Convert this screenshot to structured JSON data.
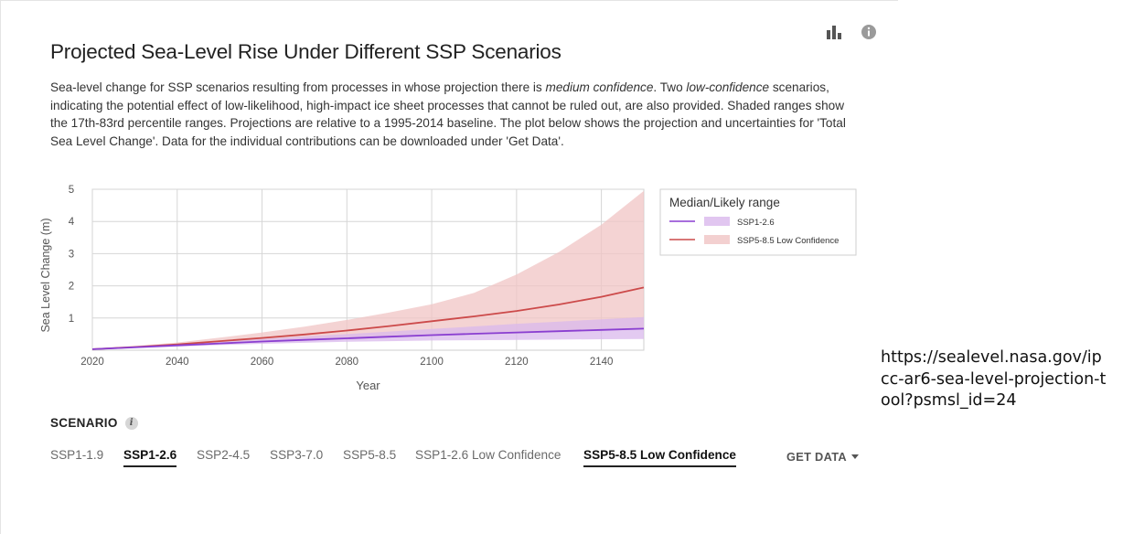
{
  "header": {
    "title": "Projected Sea-Level Rise Under Different SSP Scenarios",
    "description_html": "Sea-level change for SSP scenarios resulting from processes in whose projection there is <i>medium confidence</i>. Two <i>low-confidence</i> scenarios, indicating the potential effect of low-likelihood, high-impact ice sheet processes that cannot be ruled out, are also provided. Shaded ranges show the 17th-83rd percentile ranges. Projections are relative to a 1995-2014 baseline. The plot below shows the projection and uncertainties for 'Total Sea Level Change'. Data for the individual contributions can be downloaded under 'Get Data'."
  },
  "icons": {
    "chart": "bar-chart-icon",
    "info": "info-icon"
  },
  "scenario": {
    "label": "SCENARIO",
    "info_glyph": "i",
    "tabs": [
      {
        "label": "SSP1-1.9",
        "active": false
      },
      {
        "label": "SSP1-2.6",
        "active": true
      },
      {
        "label": "SSP2-4.5",
        "active": false
      },
      {
        "label": "SSP3-7.0",
        "active": false
      },
      {
        "label": "SSP5-8.5",
        "active": false
      },
      {
        "label": "SSP1-2.6 Low Confidence",
        "active": false
      },
      {
        "label": "SSP5-8.5 Low Confidence",
        "active": true
      }
    ],
    "get_data_label": "GET DATA"
  },
  "url_note": "https://sealevel.nasa.gov/ipcc-ar6-sea-level-projection-tool?psmsl_id=24",
  "chart_data": {
    "type": "area",
    "xlabel": "Year",
    "ylabel": "Sea Level Change (m)",
    "xlim": [
      2020,
      2150
    ],
    "ylim": [
      0,
      5
    ],
    "xticks": [
      2020,
      2040,
      2060,
      2080,
      2100,
      2120,
      2140
    ],
    "yticks": [
      1,
      2,
      3,
      4,
      5
    ],
    "grid": true,
    "legend": {
      "title": "Median/Likely range",
      "placement": "right",
      "entries": [
        "SSP1-2.6",
        "SSP5-8.5 Low Confidence"
      ]
    },
    "x": [
      2020,
      2030,
      2040,
      2050,
      2060,
      2070,
      2080,
      2090,
      2100,
      2110,
      2120,
      2130,
      2140,
      2150
    ],
    "series": [
      {
        "name": "SSP1-2.6",
        "color": "#8a3fd1",
        "fill": "#d9b8ec",
        "median": [
          0.03,
          0.09,
          0.15,
          0.21,
          0.27,
          0.32,
          0.37,
          0.42,
          0.47,
          0.51,
          0.55,
          0.59,
          0.63,
          0.67
        ],
        "low": [
          0.02,
          0.07,
          0.11,
          0.16,
          0.2,
          0.23,
          0.26,
          0.28,
          0.3,
          0.31,
          0.32,
          0.33,
          0.34,
          0.35
        ],
        "high": [
          0.04,
          0.11,
          0.19,
          0.27,
          0.35,
          0.43,
          0.5,
          0.58,
          0.66,
          0.74,
          0.82,
          0.89,
          0.96,
          1.03
        ]
      },
      {
        "name": "SSP5-8.5 Low Confidence",
        "color": "#cc4a4a",
        "fill": "#f0c4c4",
        "median": [
          0.03,
          0.1,
          0.18,
          0.28,
          0.38,
          0.49,
          0.61,
          0.75,
          0.9,
          1.05,
          1.22,
          1.42,
          1.66,
          1.95
        ],
        "low": [
          0.02,
          0.08,
          0.13,
          0.19,
          0.24,
          0.29,
          0.34,
          0.39,
          0.44,
          0.48,
          0.52,
          0.56,
          0.6,
          0.64
        ],
        "high": [
          0.04,
          0.13,
          0.24,
          0.39,
          0.55,
          0.73,
          0.94,
          1.17,
          1.43,
          1.78,
          2.35,
          3.05,
          3.9,
          4.95
        ]
      }
    ]
  }
}
